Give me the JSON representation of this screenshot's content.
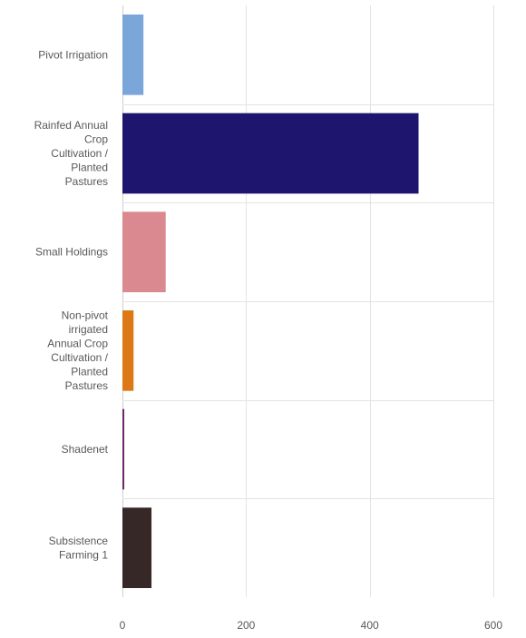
{
  "chart_data": {
    "type": "bar",
    "orientation": "horizontal",
    "title": "",
    "xlabel": "",
    "ylabel": "",
    "categories": [
      "Pivot Irrigation",
      "Rainfed Annual Crop Cultivation / Planted Pastures",
      "Small Holdings",
      "Non-pivot irrigated Annual Crop Cultivation / Planted Pastures",
      "Shadenet",
      "Subsistence Farming 1"
    ],
    "category_label_lines": [
      [
        "Pivot Irrigation"
      ],
      [
        "Rainfed Annual",
        "Crop",
        "Cultivation /",
        "Planted",
        "Pastures"
      ],
      [
        "Small Holdings"
      ],
      [
        "Non-pivot",
        "irrigated",
        "Annual Crop",
        "Cultivation /",
        "Planted",
        "Pastures"
      ],
      [
        "Shadenet"
      ],
      [
        "Subsistence",
        "Farming 1"
      ]
    ],
    "values": [
      34,
      479,
      70,
      18,
      3,
      47
    ],
    "colors": [
      "#7ba6da",
      "#1e166e",
      "#d9898f",
      "#dd7817",
      "#6b2a6b",
      "#362826"
    ],
    "xlim": [
      0,
      600
    ],
    "x_ticks": [
      0,
      200,
      400,
      600
    ],
    "x_tick_labels": [
      "0",
      "200",
      "400",
      "600"
    ],
    "grid": true,
    "legend": "none"
  }
}
